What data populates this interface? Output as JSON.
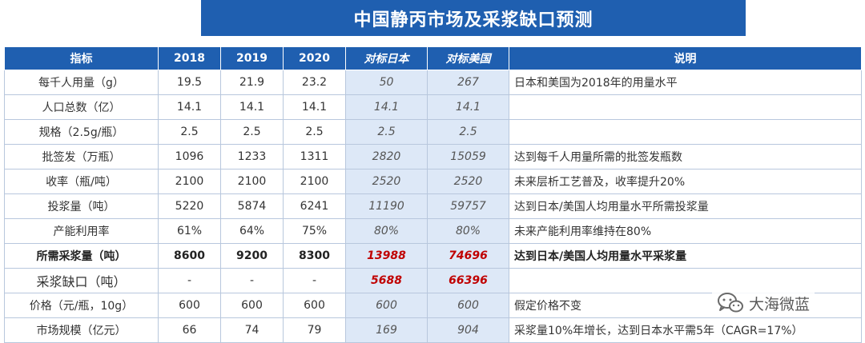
{
  "title": "中国静丙市场及采浆缺口预测",
  "headers": [
    "指标",
    "2018",
    "2019",
    "2020",
    "对标日本",
    "对标美国",
    "说明"
  ],
  "rows": [
    {
      "indicator": "每千人用量（g）",
      "y2018": "19.5",
      "y2019": "21.9",
      "y2020": "23.2",
      "japan": "50",
      "usa": "267",
      "note": "日本和美国为2018年的用量水平"
    },
    {
      "indicator": "人口总数（亿）",
      "y2018": "14.1",
      "y2019": "14.1",
      "y2020": "14.1",
      "japan": "14.1",
      "usa": "14.1",
      "note": ""
    },
    {
      "indicator": "规格（2.5g/瓶）",
      "y2018": "2.5",
      "y2019": "2.5",
      "y2020": "2.5",
      "japan": "2.5",
      "usa": "2.5",
      "note": ""
    },
    {
      "indicator": "批签发（万瓶）",
      "y2018": "1096",
      "y2019": "1233",
      "y2020": "1311",
      "japan": "2820",
      "usa": "15059",
      "note": "达到每千人用量所需的批签发瓶数"
    },
    {
      "indicator": "收率（瓶/吨）",
      "y2018": "2100",
      "y2019": "2100",
      "y2020": "2100",
      "japan": "2520",
      "usa": "2520",
      "note": "未来层析工艺普及，收率提升20%"
    },
    {
      "indicator": "投浆量（吨）",
      "y2018": "5220",
      "y2019": "5874",
      "y2020": "6241",
      "japan": "11190",
      "usa": "59757",
      "note": "达到日本/美国人均用量水平所需投浆量"
    },
    {
      "indicator": "产能利用率",
      "y2018": "61%",
      "y2019": "64%",
      "y2020": "75%",
      "japan": "80%",
      "usa": "80%",
      "note": "未来产能利用率维持在80%"
    },
    {
      "indicator": "所需采浆量（吨）",
      "y2018": "8600",
      "y2019": "9200",
      "y2020": "8300",
      "japan": "13988",
      "usa": "74696",
      "note": "达到日本/美国人均用量水平采浆量"
    },
    {
      "indicator": "采浆缺口（吨）",
      "y2018": "-",
      "y2019": "-",
      "y2020": "-",
      "japan": "5688",
      "usa": "66396",
      "note": ""
    },
    {
      "indicator": "价格（元/瓶，10g）",
      "y2018": "600",
      "y2019": "600",
      "y2020": "600",
      "japan": "600",
      "usa": "600",
      "note": "假定价格不变"
    },
    {
      "indicator": "市场规模（亿元）",
      "y2018": "66",
      "y2019": "74",
      "y2020": "79",
      "japan": "169",
      "usa": "904",
      "note": "采浆量10%年增长，达到日本水平需5年（CAGR=17%）"
    }
  ],
  "watermark": {
    "text": "大海微蓝",
    "icon": "wechat-icon"
  },
  "colors": {
    "header_bg": "#1f5fb0",
    "bench_bg": "#dde8f7",
    "highlight": "#c00000"
  }
}
